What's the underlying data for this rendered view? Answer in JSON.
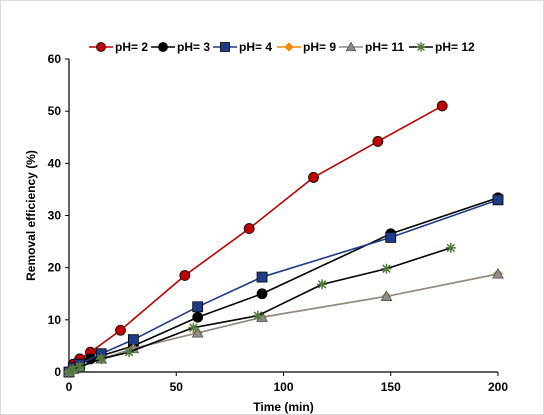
{
  "chart_data": {
    "type": "line",
    "title": "",
    "xlabel": "Time (min)",
    "ylabel": "Removal efficiency (%)",
    "xlim": [
      0,
      200
    ],
    "ylim": [
      0,
      60
    ],
    "xticks": [
      0,
      50,
      100,
      150,
      200
    ],
    "yticks": [
      0,
      10,
      20,
      30,
      40,
      50,
      60
    ],
    "grid": false,
    "legend_position": "top",
    "series": [
      {
        "name": "pH= 2",
        "color": "#c00000",
        "marker": "circle",
        "marker_fill": "#c00000",
        "line_color": "#c00000",
        "x": [
          0,
          2,
          5,
          10,
          24,
          54,
          84,
          114,
          144,
          174
        ],
        "y": [
          0,
          1.5,
          2.5,
          3.8,
          8,
          18.5,
          27.5,
          37.3,
          44.2,
          51
        ]
      },
      {
        "name": "pH= 3",
        "color": "#000000",
        "marker": "circle",
        "marker_fill": "#000000",
        "line_color": "#000000",
        "x": [
          0,
          2,
          5,
          10,
          30,
          60,
          90,
          150,
          200
        ],
        "y": [
          0,
          0.8,
          1.5,
          2.5,
          5,
          10.5,
          15,
          26.5,
          33.4
        ]
      },
      {
        "name": "pH= 4",
        "color": "#1f3c88",
        "marker": "square",
        "marker_fill": "#1f3c88",
        "line_color": "#1f3c88",
        "x": [
          0,
          2,
          5,
          15,
          30,
          60,
          90,
          150,
          200
        ],
        "y": [
          0,
          0.8,
          1.5,
          3.5,
          6.2,
          12.5,
          18.2,
          25.8,
          33
        ]
      },
      {
        "name": "pH= 9",
        "color": "#f08a00",
        "marker": "diamond",
        "marker_fill": "#f08a00",
        "line_color": "#f08a00",
        "x": [
          0,
          2,
          5,
          15,
          30,
          60,
          90,
          148,
          200
        ],
        "y": [
          0,
          0.5,
          1,
          2.5,
          4.5,
          7.5,
          10.5,
          14.5,
          18.8
        ]
      },
      {
        "name": "pH= 11",
        "color": "#8c8c8c",
        "marker": "triangle",
        "marker_fill": "#8c8c8c",
        "line_color": "#8c8c8c",
        "x": [
          0,
          2,
          5,
          15,
          30,
          60,
          90,
          148,
          200
        ],
        "y": [
          0,
          0.5,
          1,
          2.5,
          4.5,
          7.5,
          10.5,
          14.5,
          18.8
        ]
      },
      {
        "name": "pH= 12",
        "color": "#4e7a3a",
        "marker": "star",
        "marker_fill": "#4e7a3a",
        "line_color": "#000000",
        "x": [
          0,
          2,
          5,
          15,
          28,
          58,
          88,
          118,
          148,
          178
        ],
        "y": [
          0,
          0.5,
          1,
          2.5,
          3.8,
          8.5,
          10.8,
          16.8,
          19.8,
          23.8
        ]
      }
    ]
  }
}
